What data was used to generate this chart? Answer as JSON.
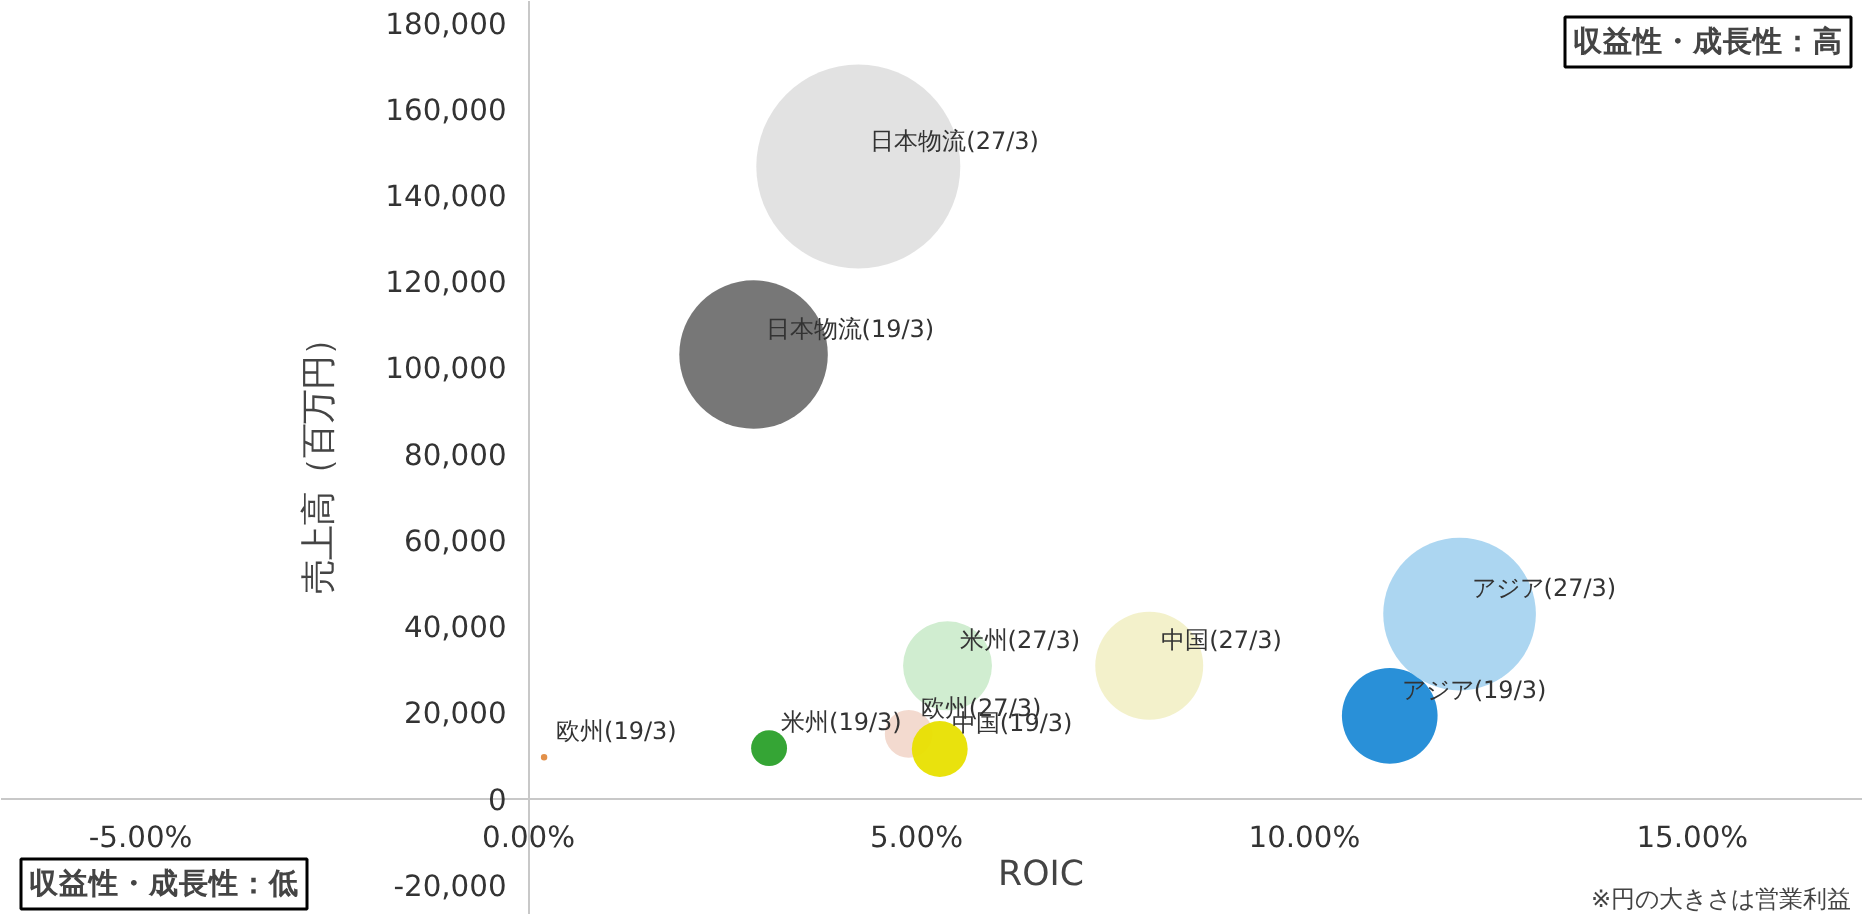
{
  "chart_data": {
    "type": "bubble",
    "xlabel": "ROIC",
    "ylabel": "売上高（百万円）",
    "xlim": [
      -6.8,
      17.2
    ],
    "ylim": [
      -27000,
      185000
    ],
    "xticks": [
      {
        "value": -5,
        "label": "-5.00%"
      },
      {
        "value": 0,
        "label": "0.00%"
      },
      {
        "value": 5,
        "label": "5.00%"
      },
      {
        "value": 10,
        "label": "10.00%"
      },
      {
        "value": 15,
        "label": "15.00%"
      }
    ],
    "yticks": [
      {
        "value": -20000,
        "label": "-20,000"
      },
      {
        "value": 0,
        "label": "0"
      },
      {
        "value": 20000,
        "label": "20,000"
      },
      {
        "value": 40000,
        "label": "40,000"
      },
      {
        "value": 60000,
        "label": "60,000"
      },
      {
        "value": 80000,
        "label": "80,000"
      },
      {
        "value": 100000,
        "label": "100,000"
      },
      {
        "value": 120000,
        "label": "120,000"
      },
      {
        "value": 140000,
        "label": "140,000"
      },
      {
        "value": 160000,
        "label": "160,000"
      },
      {
        "value": 180000,
        "label": "180,000"
      }
    ],
    "grid": false,
    "series": [
      {
        "x": [
          2.9,
          4.25
        ],
        "values": [
          103000,
          146600
        ],
        "sizes": [
          0.53,
          1
        ],
        "colors": [
          "#707070",
          "#e0e0e0"
        ]
      },
      {
        "x": [
          0.2,
          4.9
        ],
        "values": [
          9600,
          15000
        ],
        "sizes": [
          0.001,
          0.055
        ],
        "colors": [
          "#e08a40",
          "#f2d8cc"
        ]
      },
      {
        "x": [
          3.1,
          5.4
        ],
        "values": [
          11700,
          30800
        ],
        "sizes": [
          0.031,
          0.19
        ],
        "colors": [
          "#2aa02a",
          "#cdeccd"
        ]
      },
      {
        "x": [
          5.3,
          8.0
        ],
        "values": [
          11500,
          30800
        ],
        "sizes": [
          0.075,
          0.28
        ],
        "colors": [
          "#e8e000",
          "#f2f0c8"
        ]
      },
      {
        "x": [
          11.1,
          12.0
        ],
        "values": [
          19200,
          42800
        ],
        "sizes": [
          0.22,
          0.56
        ],
        "colors": [
          "#1e8ad6",
          "#a8d4f0"
        ]
      }
    ],
    "annotations": [
      {
        "text": "日本物流(19/3)",
        "x": 2.9,
        "y": 103000
      },
      {
        "text": "日本物流(27/3)",
        "x": 4.25,
        "y": 146600
      },
      {
        "text": "欧州(19/3)",
        "x": 0.2,
        "y": 9600
      },
      {
        "text": "欧州(27/3)",
        "x": 4.9,
        "y": 15000
      },
      {
        "text": "米州(19/3)",
        "x": 3.1,
        "y": 11700
      },
      {
        "text": "米州(27/3)",
        "x": 5.4,
        "y": 30800
      },
      {
        "text": "中国(19/3)",
        "x": 5.3,
        "y": 11500
      },
      {
        "text": "中国(27/3)",
        "x": 8.0,
        "y": 30800
      },
      {
        "text": "アジア(19/3)",
        "x": 11.1,
        "y": 19200
      },
      {
        "text": "アジア(27/3)",
        "x": 12.0,
        "y": 42800
      },
      "収益性・成長性：高",
      "収益性・成長性：低",
      "※円の大きさは営業利益"
    ]
  }
}
